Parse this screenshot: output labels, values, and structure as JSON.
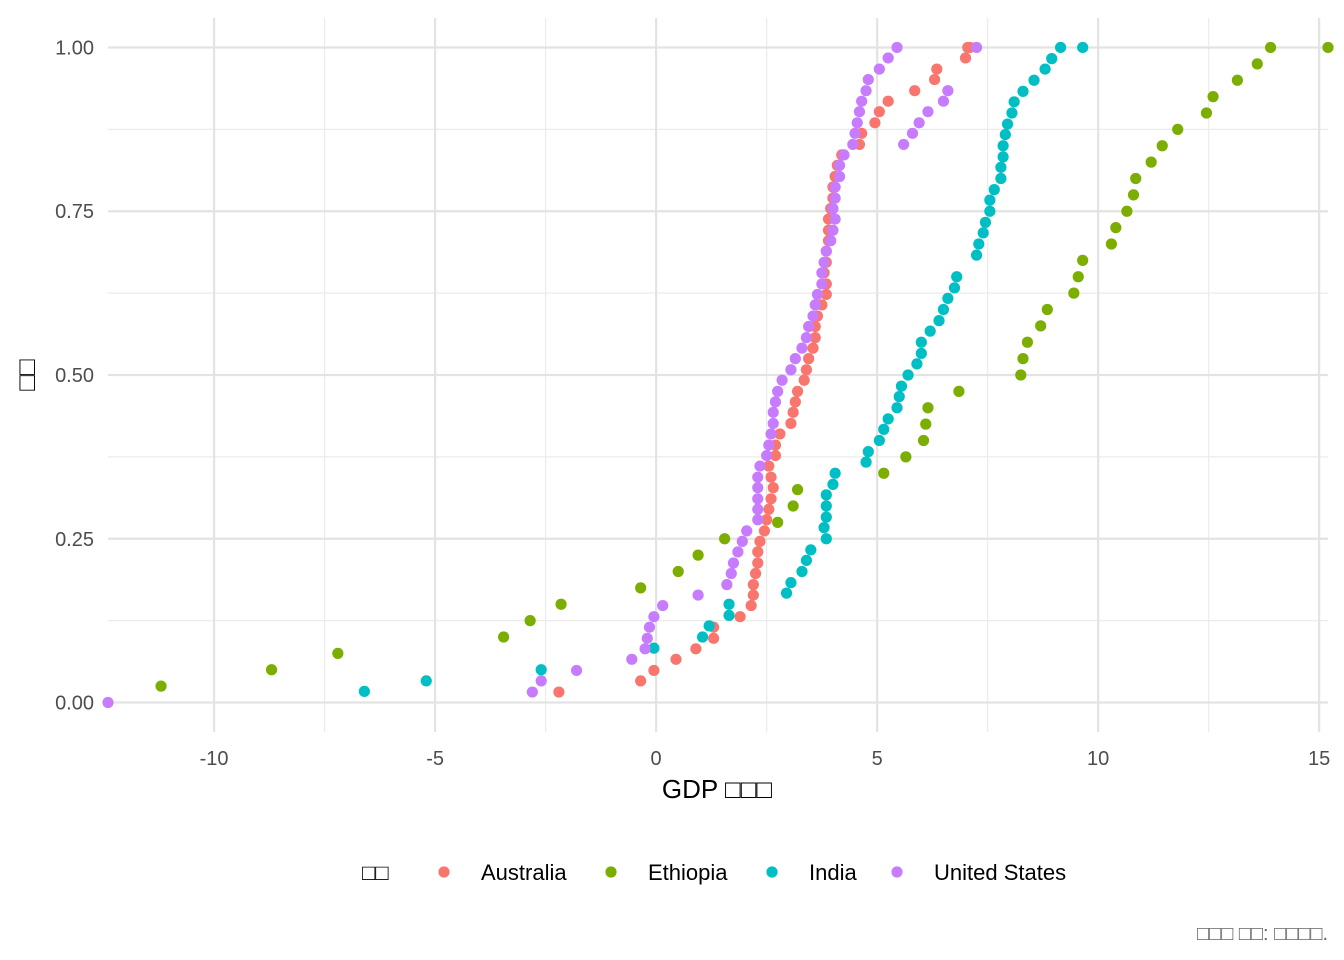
{
  "chart_data": {
    "type": "scatter",
    "xlabel": "GDP □□□",
    "ylabel": "□□",
    "legend_title": "□□",
    "caption": "□□□ □□: □□□□.",
    "xlim": [
      -12.4,
      15.2
    ],
    "ylim": [
      -0.045,
      1.045
    ],
    "x_ticks": [
      -10,
      -5,
      0,
      5,
      10,
      15
    ],
    "x_tick_labels": [
      "-10",
      "-5",
      "0",
      "5",
      "10",
      "15"
    ],
    "y_ticks": [
      0,
      0.25,
      0.5,
      0.75,
      1
    ],
    "y_tick_labels": [
      "0.00",
      "0.25",
      "0.50",
      "0.75",
      "1.00"
    ],
    "grid": true,
    "legend_position": "bottom",
    "series": [
      {
        "name": "Australia",
        "color": "#F8766D",
        "x": [
          -2.2,
          -0.35,
          -0.05,
          0.45,
          0.9,
          1.3,
          1.3,
          1.9,
          2.15,
          2.2,
          2.2,
          2.25,
          2.3,
          2.3,
          2.35,
          2.45,
          2.5,
          2.55,
          2.6,
          2.65,
          2.6,
          2.55,
          2.7,
          2.7,
          2.8,
          3.05,
          3.1,
          3.15,
          3.2,
          3.35,
          3.4,
          3.45,
          3.55,
          3.6,
          3.6,
          3.65,
          3.75,
          3.85,
          3.85,
          3.8,
          3.85,
          3.85,
          3.9,
          3.9,
          3.9,
          3.95,
          4.0,
          4.0,
          4.05,
          4.1,
          4.2,
          4.6,
          4.65,
          4.95,
          5.05,
          5.25,
          5.85,
          6.3,
          6.35,
          7.0,
          7.05,
          7.1
        ],
        "y": [
          0.016,
          0.033,
          0.049,
          0.066,
          0.082,
          0.098,
          0.115,
          0.131,
          0.148,
          0.164,
          0.18,
          0.197,
          0.213,
          0.23,
          0.246,
          0.262,
          0.279,
          0.295,
          0.311,
          0.328,
          0.344,
          0.361,
          0.377,
          0.393,
          0.41,
          0.426,
          0.443,
          0.459,
          0.475,
          0.492,
          0.508,
          0.525,
          0.541,
          0.557,
          0.574,
          0.59,
          0.607,
          0.623,
          0.639,
          0.656,
          0.672,
          0.689,
          0.705,
          0.721,
          0.738,
          0.754,
          0.77,
          0.787,
          0.803,
          0.82,
          0.836,
          0.852,
          0.869,
          0.885,
          0.902,
          0.918,
          0.934,
          0.951,
          0.967,
          0.984,
          1.0,
          1.0
        ]
      },
      {
        "name": "Ethiopia",
        "color": "#7CAE00",
        "x": [
          -11.2,
          -8.7,
          -7.2,
          -3.45,
          -2.85,
          -2.15,
          -0.35,
          0.5,
          0.95,
          1.55,
          3.1,
          3.2,
          2.75,
          5.15,
          5.65,
          6.05,
          6.1,
          6.15,
          6.85,
          8.25,
          8.3,
          8.4,
          8.7,
          8.85,
          9.45,
          9.55,
          9.65,
          10.3,
          10.4,
          10.65,
          10.8,
          10.85,
          11.2,
          11.45,
          11.8,
          12.45,
          12.6,
          13.15,
          13.6,
          13.9,
          15.2
        ],
        "y": [
          0.025,
          0.05,
          0.075,
          0.1,
          0.125,
          0.15,
          0.175,
          0.2,
          0.225,
          0.25,
          0.3,
          0.325,
          0.275,
          0.35,
          0.375,
          0.4,
          0.425,
          0.45,
          0.475,
          0.5,
          0.525,
          0.55,
          0.575,
          0.6,
          0.625,
          0.65,
          0.675,
          0.7,
          0.725,
          0.75,
          0.775,
          0.8,
          0.825,
          0.85,
          0.875,
          0.9,
          0.925,
          0.95,
          0.975,
          1.0,
          1.0
        ]
      },
      {
        "name": "India",
        "color": "#00BFC4",
        "x": [
          -6.6,
          -5.2,
          -2.6,
          -0.05,
          1.05,
          1.2,
          1.65,
          1.65,
          2.95,
          3.05,
          3.3,
          3.4,
          3.5,
          3.85,
          3.8,
          3.85,
          3.85,
          3.85,
          4.0,
          4.05,
          4.75,
          4.8,
          5.05,
          5.15,
          5.25,
          5.45,
          5.5,
          5.55,
          5.7,
          5.9,
          6.0,
          6.0,
          6.2,
          6.4,
          6.5,
          6.6,
          6.75,
          6.8,
          7.25,
          7.3,
          7.4,
          7.45,
          7.55,
          7.55,
          7.65,
          7.8,
          7.8,
          7.85,
          7.85,
          7.9,
          7.95,
          8.05,
          8.1,
          8.3,
          8.55,
          8.8,
          8.95,
          9.15,
          9.65
        ],
        "y": [
          0.017,
          0.033,
          0.05,
          0.083,
          0.1,
          0.117,
          0.133,
          0.15,
          0.167,
          0.183,
          0.2,
          0.217,
          0.233,
          0.25,
          0.267,
          0.283,
          0.3,
          0.317,
          0.333,
          0.35,
          0.367,
          0.383,
          0.4,
          0.417,
          0.433,
          0.45,
          0.467,
          0.483,
          0.5,
          0.517,
          0.533,
          0.55,
          0.567,
          0.583,
          0.6,
          0.617,
          0.633,
          0.65,
          0.683,
          0.7,
          0.717,
          0.733,
          0.75,
          0.767,
          0.783,
          0.8,
          0.817,
          0.833,
          0.85,
          0.867,
          0.883,
          0.9,
          0.917,
          0.933,
          0.95,
          0.967,
          0.983,
          1.0,
          1.0
        ]
      },
      {
        "name": "United States",
        "color": "#C77CFF",
        "x": [
          -12.4,
          -2.8,
          -2.6,
          -1.8,
          -0.55,
          -0.25,
          -0.2,
          -0.15,
          -0.05,
          0.15,
          0.95,
          1.6,
          1.7,
          1.75,
          1.85,
          1.95,
          2.05,
          2.3,
          2.3,
          2.3,
          2.3,
          2.3,
          2.35,
          2.5,
          2.55,
          2.6,
          2.65,
          2.65,
          2.7,
          2.75,
          2.85,
          3.05,
          3.15,
          3.3,
          3.4,
          3.45,
          3.55,
          3.6,
          3.65,
          3.75,
          3.75,
          3.8,
          3.85,
          3.95,
          4.0,
          4.05,
          4.0,
          4.05,
          4.05,
          4.15,
          4.15,
          4.25,
          4.45,
          4.5,
          4.55,
          4.6,
          4.65,
          4.75,
          4.8,
          5.05,
          5.25,
          5.45,
          5.6,
          5.8,
          5.95,
          6.15,
          6.5,
          6.6,
          7.25
        ],
        "y": [
          0.0,
          0.016,
          0.033,
          0.049,
          0.066,
          0.082,
          0.098,
          0.115,
          0.131,
          0.148,
          0.164,
          0.18,
          0.197,
          0.213,
          0.23,
          0.246,
          0.262,
          0.279,
          0.295,
          0.311,
          0.328,
          0.344,
          0.361,
          0.377,
          0.393,
          0.41,
          0.426,
          0.443,
          0.459,
          0.475,
          0.492,
          0.508,
          0.525,
          0.541,
          0.557,
          0.574,
          0.59,
          0.607,
          0.623,
          0.639,
          0.656,
          0.672,
          0.689,
          0.705,
          0.721,
          0.738,
          0.754,
          0.77,
          0.787,
          0.803,
          0.82,
          0.836,
          0.852,
          0.869,
          0.885,
          0.902,
          0.918,
          0.934,
          0.951,
          0.967,
          0.984,
          1.0,
          0.852,
          0.869,
          0.885,
          0.902,
          0.918,
          0.934,
          1.0
        ]
      }
    ]
  }
}
